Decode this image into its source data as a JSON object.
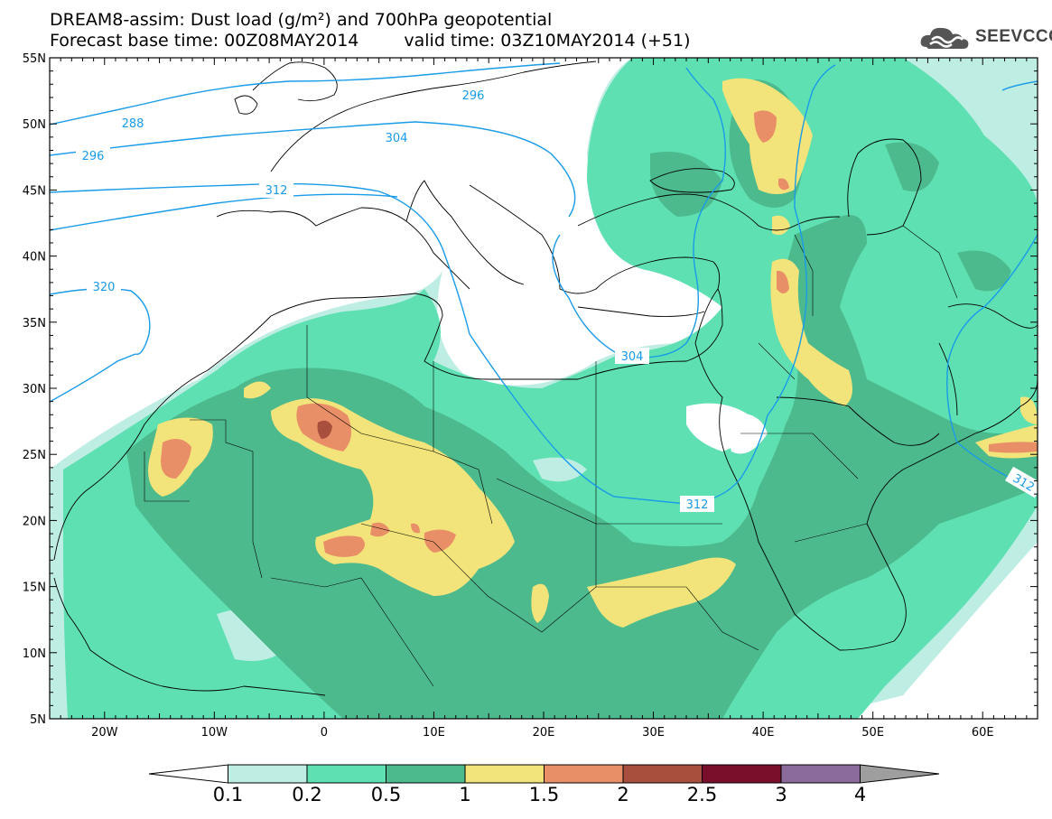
{
  "title": {
    "line1": "DREAM8-assim: Dust load (g/m²) and 700hPa geopotential",
    "base_time": "Forecast base time: 00Z08MAY2014",
    "valid_time": "valid time: 03Z10MAY2014 (+51)"
  },
  "logo": {
    "text": "SEEVCCC",
    "icon": "cloud-icon"
  },
  "map": {
    "lon_range": [
      -25,
      65
    ],
    "lat_range": [
      5,
      55
    ],
    "lat_labels": [
      "55N",
      "50N",
      "45N",
      "40N",
      "35N",
      "30N",
      "25N",
      "20N",
      "15N",
      "10N",
      "5N"
    ],
    "lon_labels": [
      "20W",
      "10W",
      "0",
      "10E",
      "20E",
      "30E",
      "40E",
      "50E",
      "60E"
    ],
    "contour_labels": [
      "288",
      "296",
      "296",
      "304",
      "312",
      "320",
      "304",
      "312",
      "312"
    ]
  },
  "colorbar": {
    "labels": [
      "0.1",
      "0.2",
      "0.5",
      "1",
      "1.5",
      "2",
      "2.5",
      "3",
      "4"
    ],
    "colors": [
      "#ffffff",
      "#bdede3",
      "#5ee0b2",
      "#4dba8d",
      "#f2e47a",
      "#e98f67",
      "#a94f3d",
      "#7a0f2c",
      "#8b6b9c",
      "#9e9e9e"
    ]
  },
  "colors": {
    "contour": "#1a9be8",
    "land_border": "#000000"
  }
}
